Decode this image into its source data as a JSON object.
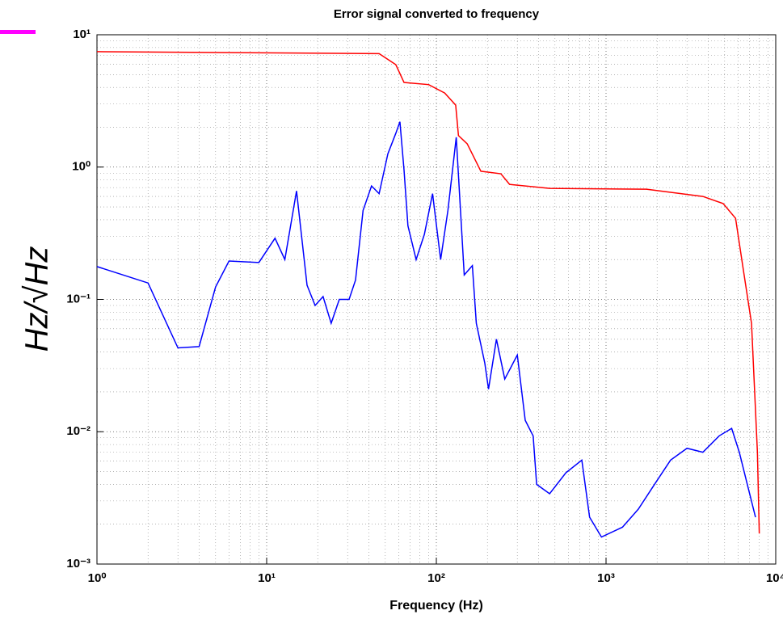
{
  "chart_data": {
    "type": "line",
    "title": "Error signal converted to frequency",
    "xlabel": "Frequency (Hz)",
    "ylabel": "Hz/√Hz",
    "xscale": "log",
    "yscale": "log",
    "grid": true,
    "xlim": [
      1,
      10000
    ],
    "ylim": [
      0.001,
      10
    ],
    "xticks": [
      {
        "value": 1,
        "label": "10⁰"
      },
      {
        "value": 10,
        "label": "10¹"
      },
      {
        "value": 100,
        "label": "10²"
      },
      {
        "value": 1000,
        "label": "10³"
      },
      {
        "value": 10000,
        "label": "10⁴"
      }
    ],
    "yticks": [
      {
        "value": 0.001,
        "label": "10⁻³"
      },
      {
        "value": 0.01,
        "label": "10⁻²"
      },
      {
        "value": 0.1,
        "label": "10⁻¹"
      },
      {
        "value": 1,
        "label": "10⁰"
      },
      {
        "value": 10,
        "label": "10¹"
      }
    ],
    "series": [
      {
        "color": "#0000ff",
        "x": [
          1,
          2,
          3,
          4,
          5,
          6,
          9,
          11.2,
          12.8,
          15,
          17.3,
          19.3,
          21.5,
          24,
          26.8,
          30.6,
          33.4,
          37,
          41.5,
          46,
          51.8,
          57.7,
          61,
          64.5,
          68,
          76,
          85,
          95,
          106,
          117,
          131,
          146,
          163,
          172,
          193,
          203,
          226,
          253,
          300,
          334,
          372,
          390,
          465,
          580,
          720,
          800,
          940,
          1250,
          1550,
          1930,
          2400,
          3000,
          3720,
          4640,
          5500,
          6100,
          6800,
          7600
        ],
        "values": [
          0.177,
          0.133,
          0.043,
          0.044,
          0.124,
          0.195,
          0.19,
          0.29,
          0.2,
          0.66,
          0.128,
          0.09,
          0.105,
          0.066,
          0.1,
          0.1,
          0.14,
          0.47,
          0.72,
          0.63,
          1.26,
          1.8,
          2.2,
          0.95,
          0.36,
          0.2,
          0.31,
          0.63,
          0.2,
          0.47,
          1.68,
          0.153,
          0.18,
          0.066,
          0.033,
          0.021,
          0.05,
          0.025,
          0.038,
          0.0122,
          0.0093,
          0.004,
          0.0034,
          0.0049,
          0.0061,
          0.00226,
          0.0016,
          0.0019,
          0.0026,
          0.004,
          0.0061,
          0.0075,
          0.007,
          0.0093,
          0.0106,
          0.007,
          0.004,
          0.00226
        ]
      },
      {
        "color": "#ff0000",
        "x": [
          1,
          46,
          57.7,
          64.5,
          90,
          112,
          130,
          135,
          152,
          183,
          240,
          270,
          465,
          1730,
          3720,
          4900,
          5800,
          6400,
          7200,
          7800,
          8000
        ],
        "values": [
          7.45,
          7.2,
          5.94,
          4.36,
          4.2,
          3.63,
          2.94,
          1.73,
          1.5,
          0.93,
          0.89,
          0.74,
          0.69,
          0.68,
          0.6,
          0.53,
          0.41,
          0.177,
          0.066,
          0.007,
          0.0017
        ]
      }
    ]
  }
}
